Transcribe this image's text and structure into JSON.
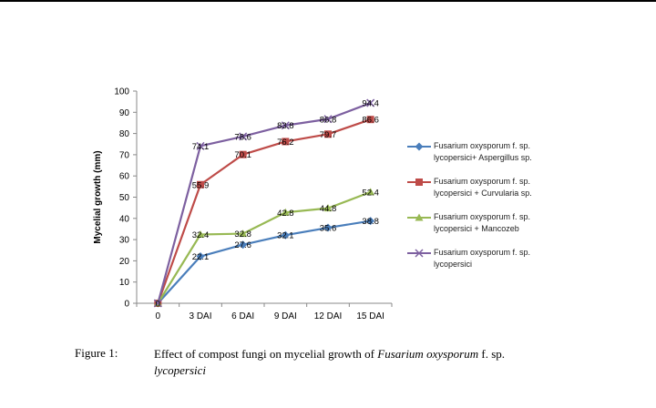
{
  "chart_data": {
    "type": "line",
    "title": "",
    "xlabel": "",
    "ylabel": "Mycelial growth (mm)",
    "categories": [
      "0",
      "3 DAI",
      "6 DAI",
      "9 DAI",
      "12 DAI",
      "15 DAI"
    ],
    "ylim": [
      0,
      100
    ],
    "yticks": [
      0,
      10,
      20,
      30,
      40,
      50,
      60,
      70,
      80,
      90,
      100
    ],
    "grid": false,
    "legend": "right",
    "series": [
      {
        "name": "Fusarium oxysporum f. sp. lycopersici+ Aspergillus sp.",
        "legend_label": "Fusarium oxysporum f. sp.\nlycopersici+ Aspergillus sp.",
        "color": "#4A7EBB",
        "marker": "diamond",
        "values": [
          0,
          22.1,
          27.6,
          32.1,
          35.6,
          38.8
        ],
        "labels": [
          "0",
          "22.1",
          "27.6",
          "32.1",
          "35.6",
          "38.8"
        ]
      },
      {
        "name": "Fusarium oxysporum f. sp. lycopersici + Curvularia sp.",
        "legend_label": "Fusarium oxysporum f. sp.\nlycopersici + Curvularia sp.",
        "color": "#BE4B48",
        "marker": "square",
        "values": [
          0,
          55.9,
          70.1,
          76.2,
          79.7,
          86.6
        ],
        "labels": [
          "0",
          "55.9",
          "70.1",
          "76.2",
          "79.7",
          "86.6"
        ]
      },
      {
        "name": "Fusarium oxysporum f. sp. lycopersici + Mancozeb",
        "legend_label": "Fusarium oxysporum f. sp.\nlycopersici +  Mancozeb",
        "color": "#98B954",
        "marker": "triangle",
        "values": [
          0,
          32.4,
          32.8,
          42.8,
          44.8,
          52.4
        ],
        "labels": [
          "0",
          "32.4",
          "32.8",
          "42.8",
          "44.8",
          "52.4"
        ]
      },
      {
        "name": "Fusarium oxysporum f. sp. lycopersici",
        "legend_label": "Fusarium oxysporum f. sp.\nlycopersici",
        "color": "#7D60A0",
        "marker": "x",
        "values": [
          0,
          74.1,
          78.6,
          83.8,
          86.8,
          94.4
        ],
        "labels": [
          "0",
          "74.1",
          "78.6",
          "83.8",
          "86.8",
          "94.4"
        ]
      }
    ]
  },
  "caption": {
    "number": "Figure 1:",
    "lead": "Effect of compost fungi on mycelial growth of ",
    "species": "Fusarium oxysporum",
    "mid": " f. sp.",
    "tail": "lycopersici"
  }
}
